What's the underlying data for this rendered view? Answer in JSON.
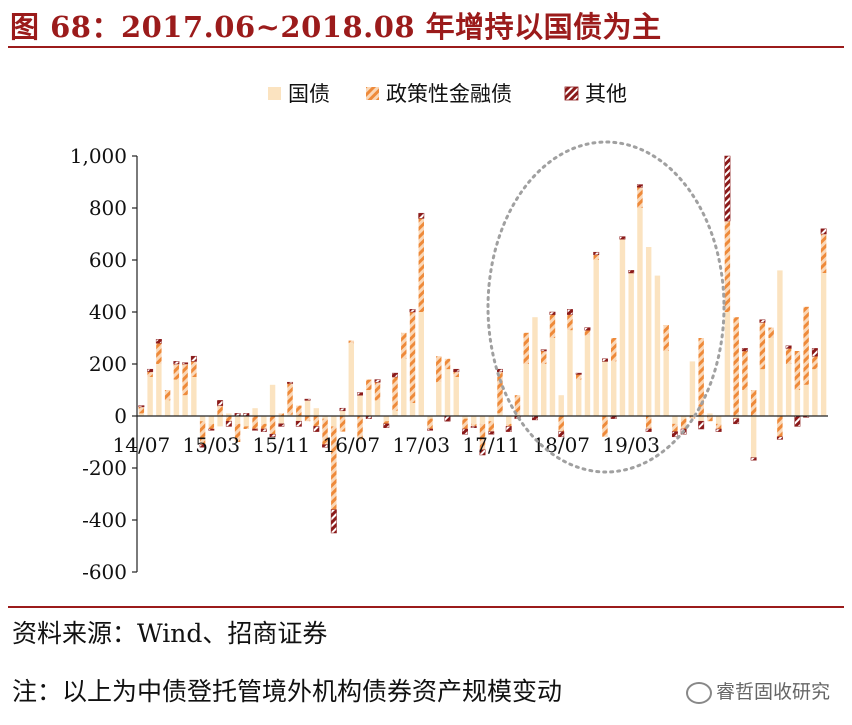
{
  "title": "图 68：2017.06~2018.08 年增持以国债为主",
  "source": "资料来源：Wind、招商证券",
  "note": "注：以上为中债登托管境外机构债券资产规模变动",
  "watermark": "睿哲固收研究",
  "colors": {
    "title": "#9b1b1b",
    "govt": "#fbe3c0",
    "policy": "#ee8a3a",
    "policy_light": "#fad8b8",
    "other": "#8b1a1a",
    "ellipse": "#a0a0a0"
  },
  "chart_data": {
    "type": "bar",
    "stacked": true,
    "ylim": [
      -600,
      1000
    ],
    "yticks": [
      "1,000",
      "800",
      "600",
      "400",
      "200",
      "0",
      "-200",
      "-400",
      "-600"
    ],
    "ytick_values": [
      1000,
      800,
      600,
      400,
      200,
      0,
      -200,
      -400,
      -600
    ],
    "xtick_labels": [
      "14/07",
      "15/03",
      "15/11",
      "16/07",
      "17/03",
      "17/11",
      "18/07",
      "19/03"
    ],
    "xtick_index": [
      0,
      8,
      16,
      24,
      32,
      40,
      48,
      56
    ],
    "legend": [
      "国债",
      "政策性金融债",
      "其他"
    ],
    "highlight_range": [
      "17/06",
      "18/08"
    ],
    "series": [
      {
        "name": "国债",
        "values": [
          10,
          150,
          200,
          60,
          140,
          80,
          150,
          -20,
          -30,
          -40,
          10,
          -30,
          -40,
          30,
          -30,
          120,
          -30,
          5,
          -20,
          60,
          30,
          -10,
          -40,
          20,
          280,
          80,
          100,
          60,
          -20,
          20,
          220,
          50,
          400,
          -10,
          130,
          180,
          150,
          -10,
          -30,
          -30,
          -20,
          10,
          -30,
          10,
          200,
          380,
          200,
          300,
          80,
          330,
          140,
          310,
          600,
          210,
          210,
          680,
          550,
          800,
          650,
          540,
          250,
          -30,
          -10,
          210,
          -20,
          10,
          -30,
          400,
          -10,
          100,
          -160,
          180,
          300,
          560,
          200,
          100,
          120,
          180,
          550
        ]
      },
      {
        "name": "政策性金融债",
        "values": [
          25,
          20,
          80,
          40,
          60,
          120,
          60,
          -90,
          -20,
          40,
          -20,
          -70,
          -10,
          -50,
          -20,
          -70,
          10,
          120,
          40,
          -20,
          -40,
          -100,
          -320,
          -60,
          10,
          -90,
          40,
          70,
          -10,
          130,
          100,
          350,
          360,
          -40,
          100,
          40,
          20,
          -40,
          -10,
          -100,
          -40,
          160,
          -10,
          70,
          120,
          0,
          50,
          90,
          -60,
          60,
          20,
          20,
          20,
          -80,
          90,
          0,
          0,
          80,
          -50,
          0,
          100,
          -30,
          -40,
          -10,
          300,
          -20,
          -20,
          350,
          380,
          150,
          100,
          180,
          40,
          -80,
          60,
          150,
          300,
          50,
          150
        ]
      },
      {
        "name": "其他",
        "values": [
          5,
          10,
          15,
          0,
          10,
          5,
          20,
          -10,
          -5,
          20,
          -20,
          10,
          10,
          -5,
          -10,
          -10,
          -10,
          5,
          -20,
          5,
          -20,
          -10,
          -90,
          10,
          0,
          10,
          -10,
          10,
          -15,
          15,
          0,
          10,
          20,
          -5,
          0,
          -20,
          10,
          -20,
          -5,
          -20,
          -10,
          10,
          -20,
          -10,
          0,
          -15,
          5,
          10,
          -20,
          20,
          5,
          10,
          10,
          10,
          -10,
          10,
          10,
          10,
          -10,
          0,
          0,
          -20,
          -20,
          0,
          -30,
          0,
          -10,
          250,
          -20,
          10,
          -10,
          10,
          0,
          -10,
          10,
          -40,
          -5,
          30,
          20
        ]
      }
    ]
  }
}
